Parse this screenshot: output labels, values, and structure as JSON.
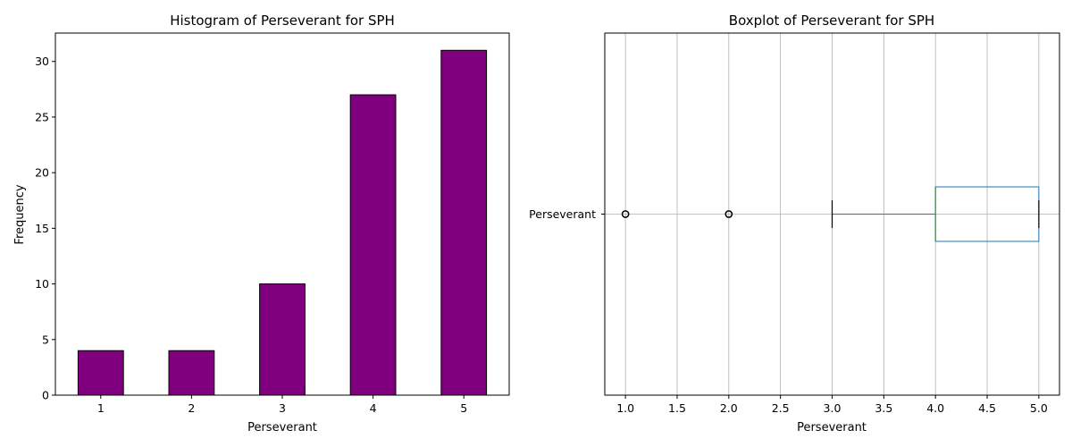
{
  "chart_data": [
    {
      "type": "bar",
      "title": "Histogram of Perseverant for SPH",
      "xlabel": "Perseverant",
      "ylabel": "Frequency",
      "categories": [
        "1",
        "2",
        "3",
        "4",
        "5"
      ],
      "values": [
        4,
        4,
        10,
        27,
        31
      ],
      "ylim": [
        0,
        32.55
      ],
      "yticks": [
        "0",
        "5",
        "10",
        "15",
        "20",
        "25",
        "30"
      ],
      "bar_color": "#800080",
      "edge_color": "#000000",
      "grid": false
    },
    {
      "type": "boxplot",
      "title": "Boxplot of Perseverant for SPH",
      "xlabel": "Perseverant",
      "category_label": "Perseverant",
      "orientation": "horizontal",
      "xlim": [
        0.8,
        5.2
      ],
      "xticks": [
        "1.0",
        "1.5",
        "2.0",
        "2.5",
        "3.0",
        "3.5",
        "4.0",
        "4.5",
        "5.0"
      ],
      "stats": {
        "whisker_low": 3,
        "q1": 4,
        "median": 4,
        "q3": 5,
        "whisker_high": 5
      },
      "outliers": [
        1,
        2
      ],
      "box_color": "#1f77b4",
      "median_color": "#2ca02c",
      "grid": true
    }
  ]
}
